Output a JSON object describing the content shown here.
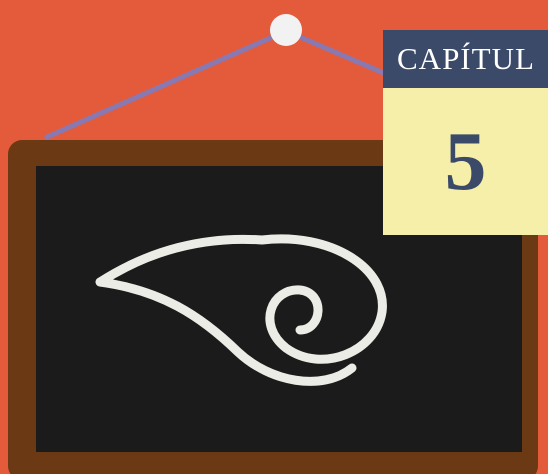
{
  "chapter_label": "CAPÍTUL",
  "chapter_number": "5"
}
